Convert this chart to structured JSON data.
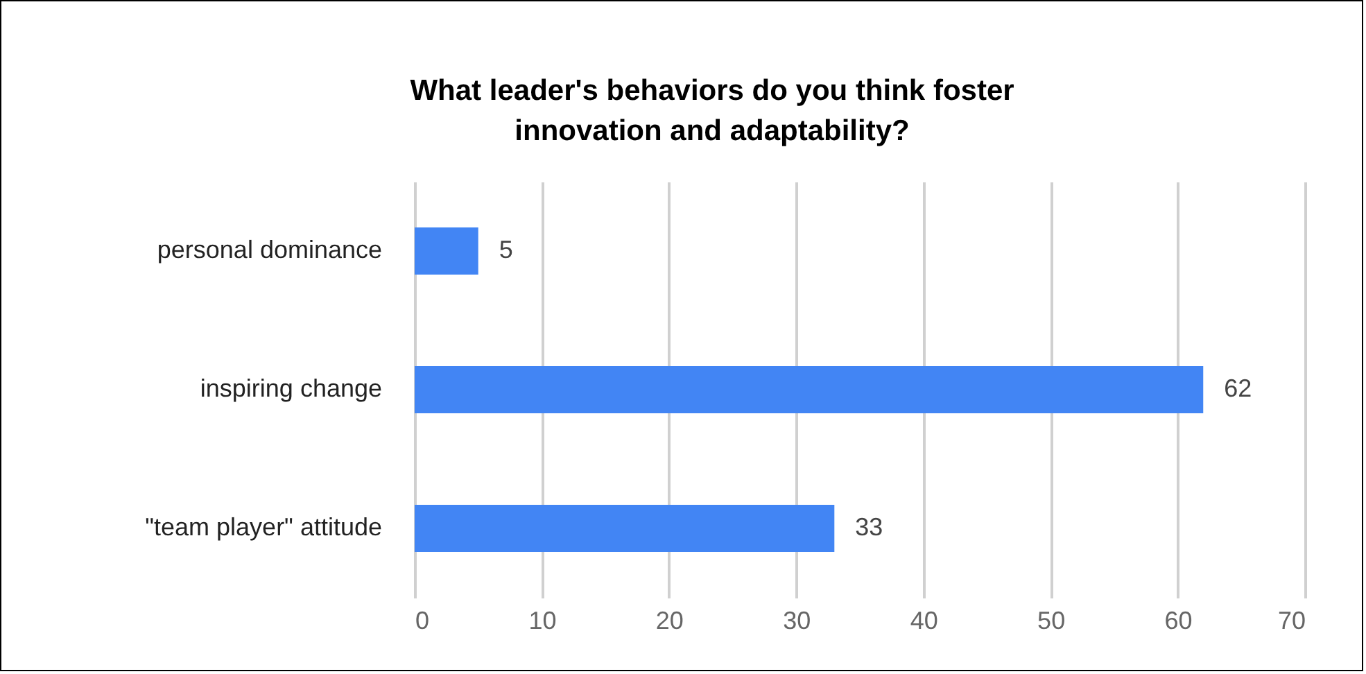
{
  "chart_data": {
    "type": "bar",
    "orientation": "horizontal",
    "title": "What leader's behaviors do you think foster innovation and adaptability?",
    "categories": [
      "personal dominance",
      "inspiring change",
      "\"team player\" attitude"
    ],
    "values": [
      5,
      62,
      33
    ],
    "color": "#4285f4",
    "xlim": [
      0,
      70
    ],
    "xticks": [
      0,
      10,
      20,
      30,
      40,
      50,
      60,
      70
    ],
    "grid": "x",
    "data_labels": true
  }
}
